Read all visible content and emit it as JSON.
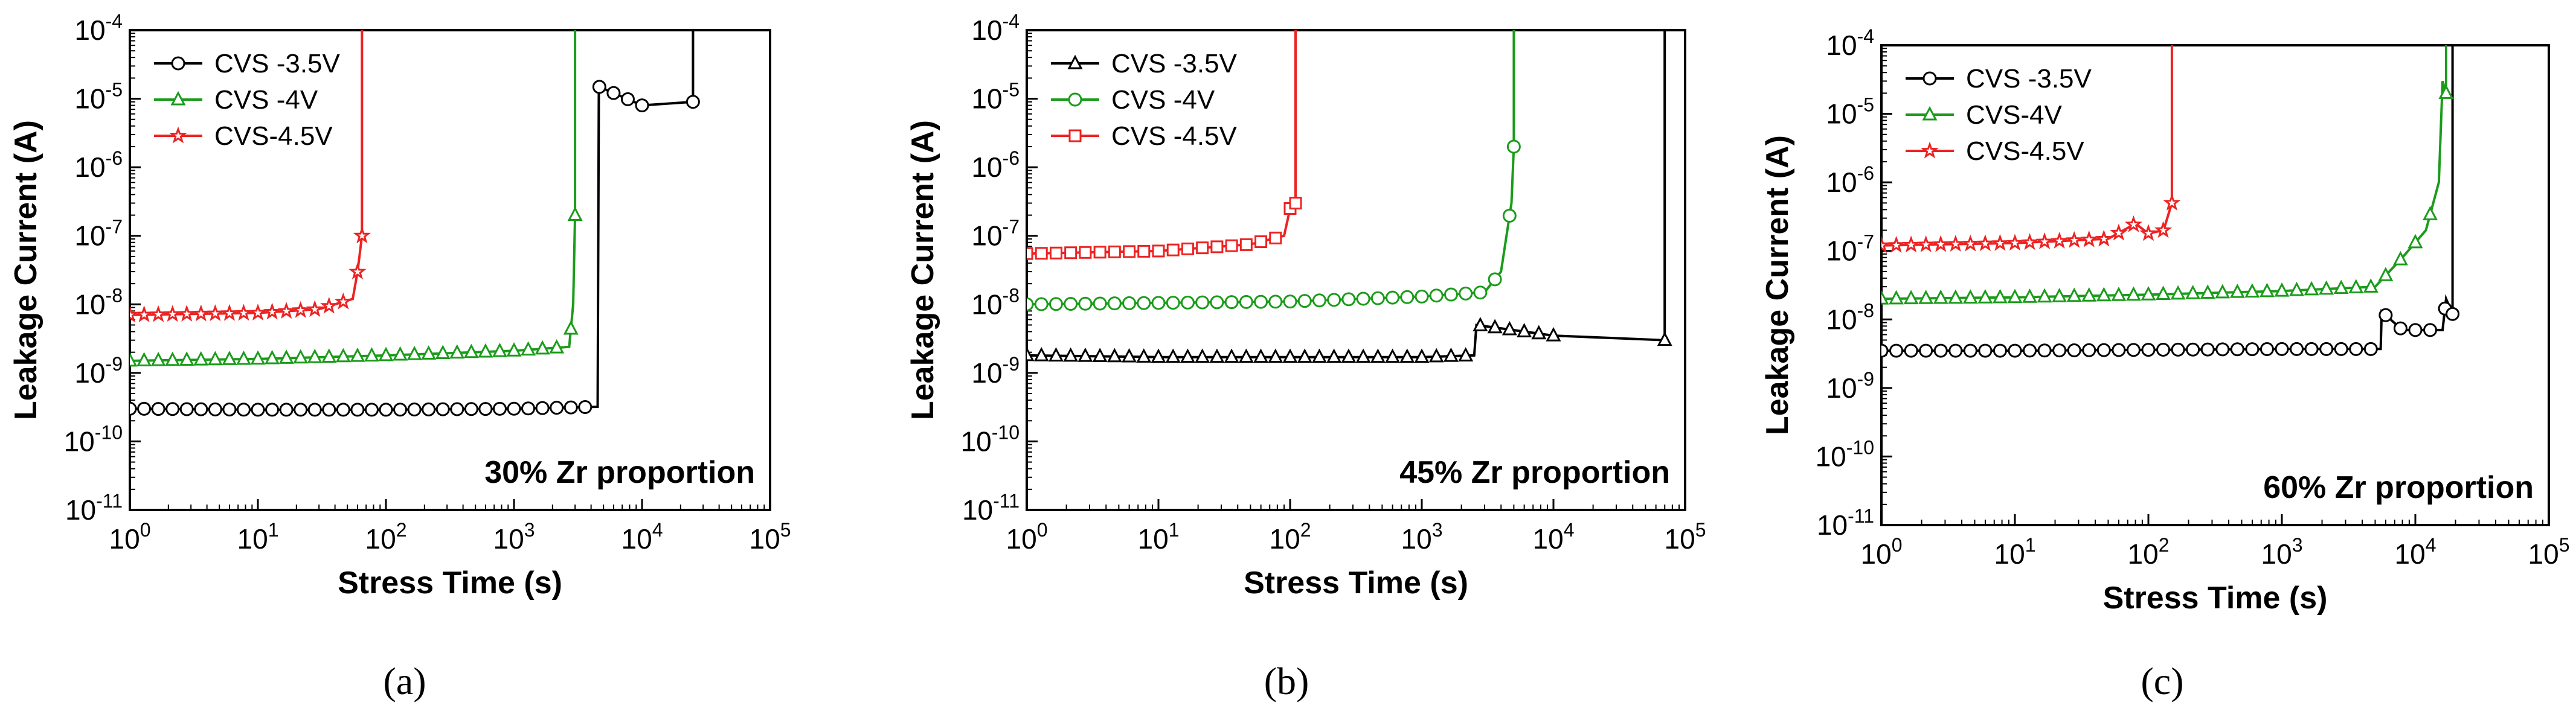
{
  "chart_data": [
    {
      "id": "a",
      "type": "line",
      "caption": "(a)",
      "annotation": "30% Zr proportion",
      "xlabel": "Stress Time (s)",
      "ylabel": "Leakage Current (A)",
      "xscale": "log",
      "yscale": "log",
      "xlim": [
        1,
        100000
      ],
      "ylim": [
        1e-11,
        0.0001
      ],
      "x_ticks": [
        {
          "base": "10",
          "exp": "0"
        },
        {
          "base": "10",
          "exp": "1"
        },
        {
          "base": "10",
          "exp": "2"
        },
        {
          "base": "10",
          "exp": "3"
        },
        {
          "base": "10",
          "exp": "4"
        },
        {
          "base": "10",
          "exp": "5"
        }
      ],
      "y_ticks": [
        {
          "base": "10",
          "exp": "-11"
        },
        {
          "base": "10",
          "exp": "-10"
        },
        {
          "base": "10",
          "exp": "-9"
        },
        {
          "base": "10",
          "exp": "-8"
        },
        {
          "base": "10",
          "exp": "-7"
        },
        {
          "base": "10",
          "exp": "-6"
        },
        {
          "base": "10",
          "exp": "-5"
        },
        {
          "base": "10",
          "exp": "-4"
        }
      ],
      "legend_position": "top-left",
      "series": [
        {
          "name": "CVS -3.5V",
          "color": "#000000",
          "marker": "circle",
          "x": [
            1,
            10,
            100,
            1000,
            4500,
            4600,
            10000,
            25000,
            25000
          ],
          "y": [
            3e-10,
            2.9e-10,
            2.9e-10,
            3e-10,
            3.2e-10,
            1.5e-05,
            8e-06,
            9e-06,
            0.0001
          ]
        },
        {
          "name": "CVS -4V",
          "color": "#1a9c1a",
          "marker": "triangle",
          "x": [
            1,
            10,
            100,
            1000,
            2700,
            2900,
            3000,
            3000
          ],
          "y": [
            1.5e-09,
            1.6e-09,
            1.8e-09,
            2.1e-09,
            2.4e-09,
            1e-08,
            2e-07,
            0.0001
          ]
        },
        {
          "name": "CVS-4.5V",
          "color": "#ee2222",
          "marker": "star",
          "x": [
            1,
            10,
            30,
            55,
            60,
            65,
            65
          ],
          "y": [
            7e-09,
            7.5e-09,
            8.5e-09,
            1.2e-08,
            3e-08,
            1e-07,
            0.0001
          ]
        }
      ]
    },
    {
      "id": "b",
      "type": "line",
      "caption": "(b)",
      "annotation": "45% Zr proportion",
      "xlabel": "Stress Time (s)",
      "ylabel": "Leakage Current (A)",
      "xscale": "log",
      "yscale": "log",
      "xlim": [
        1,
        100000
      ],
      "ylim": [
        1e-11,
        0.0001
      ],
      "x_ticks": [
        {
          "base": "10",
          "exp": "0"
        },
        {
          "base": "10",
          "exp": "1"
        },
        {
          "base": "10",
          "exp": "2"
        },
        {
          "base": "10",
          "exp": "3"
        },
        {
          "base": "10",
          "exp": "4"
        },
        {
          "base": "10",
          "exp": "5"
        }
      ],
      "y_ticks": [
        {
          "base": "10",
          "exp": "-11"
        },
        {
          "base": "10",
          "exp": "-10"
        },
        {
          "base": "10",
          "exp": "-9"
        },
        {
          "base": "10",
          "exp": "-8"
        },
        {
          "base": "10",
          "exp": "-7"
        },
        {
          "base": "10",
          "exp": "-6"
        },
        {
          "base": "10",
          "exp": "-5"
        },
        {
          "base": "10",
          "exp": "-4"
        }
      ],
      "legend_position": "top-left",
      "series": [
        {
          "name": "CVS -3.5V",
          "color": "#000000",
          "marker": "triangle",
          "x": [
            1,
            10,
            100,
            1000,
            2500,
            2600,
            10000,
            70000,
            70000
          ],
          "y": [
            1.8e-09,
            1.7e-09,
            1.7e-09,
            1.7e-09,
            1.8e-09,
            5e-09,
            3.5e-09,
            3e-09,
            0.0001
          ]
        },
        {
          "name": "CVS -4V",
          "color": "#1a9c1a",
          "marker": "circle",
          "x": [
            1,
            10,
            100,
            1000,
            3000,
            4000,
            4800,
            5000,
            5000
          ],
          "y": [
            1e-08,
            1.05e-08,
            1.1e-08,
            1.3e-08,
            1.5e-08,
            3e-08,
            3e-07,
            2e-06,
            0.0001
          ]
        },
        {
          "name": "CVS -4.5V",
          "color": "#ee2222",
          "marker": "square",
          "x": [
            1,
            10,
            50,
            90,
            100,
            110,
            110
          ],
          "y": [
            5.5e-08,
            6e-08,
            7.5e-08,
            1e-07,
            2.5e-07,
            3e-07,
            0.0001
          ]
        }
      ]
    },
    {
      "id": "c",
      "type": "line",
      "caption": "(c)",
      "annotation": "60% Zr proportion",
      "xlabel": "Stress Time (s)",
      "ylabel": "Leakage Current (A)",
      "xscale": "log",
      "yscale": "log",
      "xlim": [
        1,
        100000
      ],
      "ylim": [
        1e-11,
        0.0001
      ],
      "x_ticks": [
        {
          "base": "10",
          "exp": "0"
        },
        {
          "base": "10",
          "exp": "1"
        },
        {
          "base": "10",
          "exp": "2"
        },
        {
          "base": "10",
          "exp": "3"
        },
        {
          "base": "10",
          "exp": "4"
        },
        {
          "base": "10",
          "exp": "5"
        }
      ],
      "y_ticks": [
        {
          "base": "10",
          "exp": "-11"
        },
        {
          "base": "10",
          "exp": "-10"
        },
        {
          "base": "10",
          "exp": "-9"
        },
        {
          "base": "10",
          "exp": "-8"
        },
        {
          "base": "10",
          "exp": "-7"
        },
        {
          "base": "10",
          "exp": "-6"
        },
        {
          "base": "10",
          "exp": "-5"
        },
        {
          "base": "10",
          "exp": "-4"
        }
      ],
      "legend_position": "top-left",
      "series": [
        {
          "name": "CVS -3.5V",
          "color": "#000000",
          "marker": "circle",
          "x": [
            1,
            10,
            100,
            1000,
            5500,
            5600,
            8000,
            16000,
            17000,
            19000,
            19000
          ],
          "y": [
            3.5e-09,
            3.5e-09,
            3.6e-09,
            3.7e-09,
            3.7e-09,
            1.3e-08,
            7e-09,
            7e-09,
            2e-08,
            1.2e-08,
            0.0001
          ]
        },
        {
          "name": "CVS-4V",
          "color": "#1a9c1a",
          "marker": "triangle",
          "x": [
            1,
            10,
            100,
            1000,
            5000,
            8000,
            12000,
            15000,
            16000,
            17000,
            17000
          ],
          "y": [
            2e-08,
            2.1e-08,
            2.3e-08,
            2.6e-08,
            3e-08,
            8e-08,
            2e-07,
            1e-06,
            3e-05,
            2e-05,
            0.0001
          ]
        },
        {
          "name": "CVS-4.5V",
          "color": "#ee2222",
          "marker": "star",
          "x": [
            1,
            10,
            50,
            80,
            100,
            130,
            150,
            150
          ],
          "y": [
            1.2e-07,
            1.3e-07,
            1.5e-07,
            2.5e-07,
            1.8e-07,
            2e-07,
            5e-07,
            0.0001
          ]
        }
      ]
    }
  ]
}
